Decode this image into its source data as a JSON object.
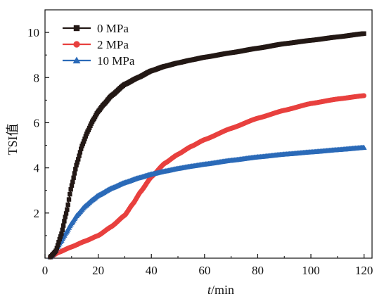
{
  "chart_data": {
    "type": "line",
    "title": "",
    "xlabel_italic": "t",
    "xlabel_rest": "/min",
    "ylabel": "TSI值",
    "xlim": [
      0,
      123
    ],
    "ylim": [
      0,
      11
    ],
    "xticks": [
      0,
      20,
      40,
      60,
      80,
      100,
      120
    ],
    "yticks": [
      2,
      4,
      6,
      8,
      10
    ],
    "xtick_labels": [
      "0",
      "20",
      "40",
      "60",
      "80",
      "100",
      "120"
    ],
    "ytick_labels": [
      "2",
      "4",
      "6",
      "8",
      "10"
    ],
    "grid": false,
    "legend_position": "top-left",
    "series": [
      {
        "name": "0 MPa",
        "color": "#231815",
        "marker": "square",
        "points": [
          [
            2,
            0.05
          ],
          [
            4,
            0.3
          ],
          [
            6,
            1.0
          ],
          [
            8,
            2.0
          ],
          [
            10,
            3.2
          ],
          [
            12,
            4.2
          ],
          [
            14,
            5.0
          ],
          [
            16,
            5.6
          ],
          [
            18,
            6.1
          ],
          [
            20,
            6.5
          ],
          [
            22,
            6.8
          ],
          [
            25,
            7.2
          ],
          [
            30,
            7.7
          ],
          [
            35,
            8.0
          ],
          [
            40,
            8.3
          ],
          [
            45,
            8.5
          ],
          [
            50,
            8.65
          ],
          [
            55,
            8.78
          ],
          [
            60,
            8.9
          ],
          [
            70,
            9.1
          ],
          [
            80,
            9.3
          ],
          [
            90,
            9.5
          ],
          [
            100,
            9.65
          ],
          [
            110,
            9.8
          ],
          [
            120,
            9.95
          ]
        ]
      },
      {
        "name": "2 MPa",
        "color": "#e8403e",
        "marker": "circle",
        "points": [
          [
            2,
            0.05
          ],
          [
            5,
            0.25
          ],
          [
            10,
            0.5
          ],
          [
            15,
            0.75
          ],
          [
            20,
            1.0
          ],
          [
            25,
            1.4
          ],
          [
            30,
            1.9
          ],
          [
            33,
            2.4
          ],
          [
            36,
            2.95
          ],
          [
            40,
            3.6
          ],
          [
            45,
            4.2
          ],
          [
            50,
            4.6
          ],
          [
            55,
            4.95
          ],
          [
            60,
            5.25
          ],
          [
            70,
            5.75
          ],
          [
            80,
            6.2
          ],
          [
            90,
            6.55
          ],
          [
            100,
            6.85
          ],
          [
            110,
            7.05
          ],
          [
            120,
            7.2
          ]
        ]
      },
      {
        "name": "10 MPa",
        "color": "#2b6ab8",
        "marker": "triangle",
        "points": [
          [
            2,
            0.05
          ],
          [
            4,
            0.35
          ],
          [
            6,
            0.75
          ],
          [
            8,
            1.15
          ],
          [
            10,
            1.55
          ],
          [
            12,
            1.9
          ],
          [
            15,
            2.3
          ],
          [
            18,
            2.6
          ],
          [
            20,
            2.78
          ],
          [
            25,
            3.1
          ],
          [
            30,
            3.35
          ],
          [
            35,
            3.55
          ],
          [
            40,
            3.72
          ],
          [
            45,
            3.85
          ],
          [
            50,
            3.97
          ],
          [
            55,
            4.07
          ],
          [
            60,
            4.16
          ],
          [
            70,
            4.33
          ],
          [
            80,
            4.48
          ],
          [
            90,
            4.6
          ],
          [
            100,
            4.7
          ],
          [
            110,
            4.8
          ],
          [
            120,
            4.9
          ]
        ]
      }
    ]
  }
}
